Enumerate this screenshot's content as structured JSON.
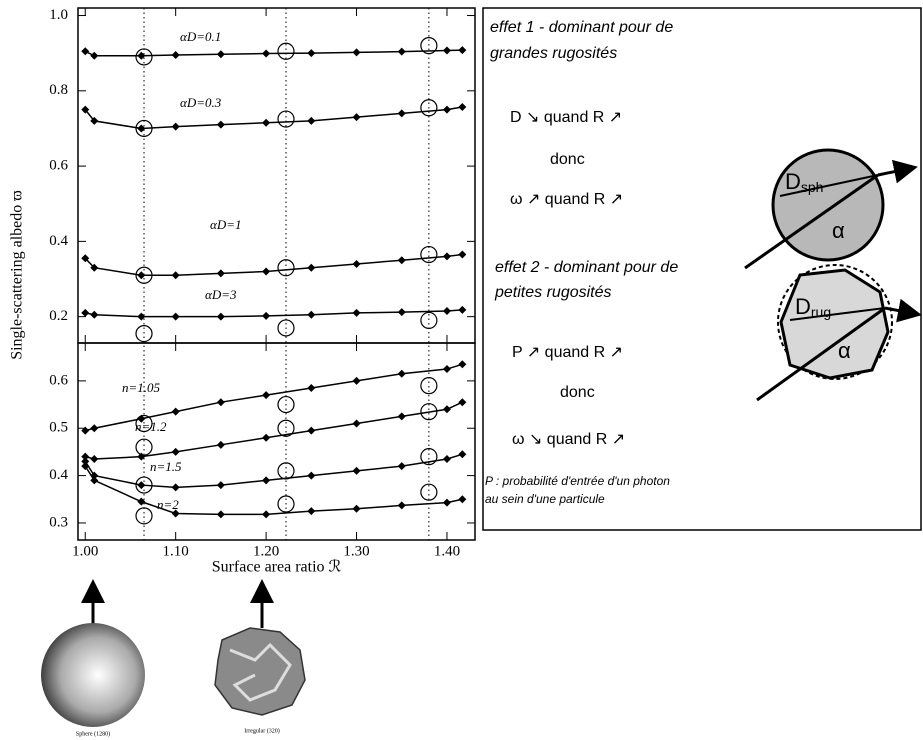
{
  "chart_data": [
    {
      "type": "line",
      "ylabel": "Single-scattering albedo ϖ",
      "x": [
        1.0,
        1.01,
        1.062,
        1.1,
        1.15,
        1.2,
        1.25,
        1.3,
        1.35,
        1.4,
        1.417
      ],
      "xlim": [
        0.992,
        1.431
      ],
      "ylim": [
        0.13,
        1.02
      ],
      "yticks": [
        0.2,
        0.4,
        0.6,
        0.8,
        {
          "value": 1,
          "label": "1.0"
        }
      ],
      "circle_x": [
        1.065,
        1.222,
        1.38
      ],
      "color": "#000000",
      "series": [
        {
          "name": "αD=0.1",
          "values": [
            0.905,
            0.893,
            0.893,
            0.895,
            0.897,
            0.899,
            0.9,
            0.902,
            0.904,
            0.907,
            0.908
          ],
          "circle_values": [
            0.89,
            0.905,
            0.92
          ]
        },
        {
          "name": "αD=0.3",
          "values": [
            0.75,
            0.72,
            0.7,
            0.705,
            0.71,
            0.715,
            0.72,
            0.73,
            0.74,
            0.75,
            0.757
          ],
          "circle_values": [
            0.7,
            0.725,
            0.755
          ]
        },
        {
          "name": "αD=1",
          "values": [
            0.355,
            0.33,
            0.31,
            0.31,
            0.315,
            0.32,
            0.33,
            0.34,
            0.35,
            0.36,
            0.365
          ],
          "circle_values": [
            0.31,
            0.33,
            0.365
          ]
        },
        {
          "name": "αD=3",
          "values": [
            0.21,
            0.205,
            0.2,
            0.2,
            0.2,
            0.202,
            0.205,
            0.21,
            0.212,
            0.215,
            0.218
          ],
          "circle_values": [
            0.155,
            0.17,
            0.19
          ]
        }
      ]
    },
    {
      "type": "line",
      "xlabel": "Surface area ratio ℛ",
      "x": [
        1.0,
        1.01,
        1.062,
        1.1,
        1.15,
        1.2,
        1.25,
        1.3,
        1.35,
        1.4,
        1.417
      ],
      "xlim": [
        0.992,
        1.431
      ],
      "xticks": [
        {
          "value": 1,
          "label": "1.00"
        },
        {
          "value": 1.1,
          "label": "1.10"
        },
        {
          "value": 1.2,
          "label": "1.20"
        },
        {
          "value": 1.3,
          "label": "1.30"
        },
        {
          "value": 1.4,
          "label": "1.40"
        }
      ],
      "ylim": [
        0.264,
        0.68
      ],
      "yticks": [
        0.3,
        0.4,
        0.5,
        0.6
      ],
      "circle_x": [
        1.065,
        1.222,
        1.38
      ],
      "color": "#000000",
      "series": [
        {
          "name": "n=1.05",
          "values": [
            0.495,
            0.5,
            0.52,
            0.535,
            0.555,
            0.57,
            0.585,
            0.6,
            0.615,
            0.625,
            0.635
          ],
          "circle_values": [
            0.51,
            0.55,
            0.59
          ]
        },
        {
          "name": "n=1.2",
          "values": [
            0.44,
            0.435,
            0.44,
            0.45,
            0.465,
            0.48,
            0.495,
            0.51,
            0.525,
            0.54,
            0.555
          ],
          "circle_values": [
            0.46,
            0.5,
            0.535
          ]
        },
        {
          "name": "n=1.5",
          "values": [
            0.43,
            0.4,
            0.38,
            0.375,
            0.38,
            0.39,
            0.4,
            0.41,
            0.42,
            0.435,
            0.445
          ],
          "circle_values": [
            0.38,
            0.41,
            0.44
          ]
        },
        {
          "name": "n=2",
          "values": [
            0.42,
            0.39,
            0.345,
            0.32,
            0.318,
            0.318,
            0.325,
            0.33,
            0.337,
            0.343,
            0.35
          ],
          "circle_values": [
            0.315,
            0.34,
            0.365
          ]
        }
      ]
    }
  ],
  "notes": {
    "effect1": [
      "effet 1 - dominant pour de",
      "grandes rugosités"
    ],
    "line1": "D ↘ quand R ↗",
    "donc1": "donc",
    "line2": "ω ↗ quand R ↗",
    "effect2": [
      "effet 2 - dominant pour de",
      "petites rugosités"
    ],
    "line3": "P ↗ quand R ↗",
    "donc2": "donc",
    "line4": "ω ↘ quand R ↗",
    "footnote": [
      "P : probabilité d'entrée d'un photon",
      "au sein d'une particule"
    ]
  },
  "diagrams": {
    "sphere": {
      "d": "D",
      "sub": "sph",
      "angle": "α"
    },
    "rough": {
      "d": "D",
      "sub": "rug",
      "angle": "α"
    }
  },
  "images": {
    "sphere": "Sphere (1280)",
    "irregular": "Irregular (320)"
  }
}
